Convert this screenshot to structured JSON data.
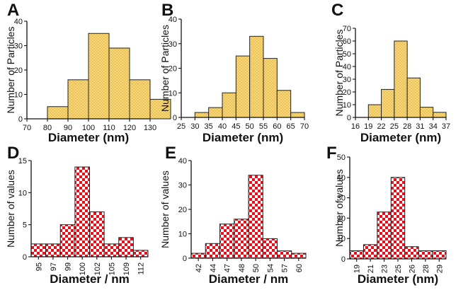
{
  "colors": {
    "yellow_fill": "#f5d77a",
    "yellow_dot": "#e2a82e",
    "red_fill": "#e8101a",
    "check_white": "#ffffff"
  },
  "chart_data": [
    {
      "panel_label": "A",
      "type": "bar",
      "style": "yellow-dotted",
      "ylabel": "Number of Particles",
      "xlabel": "Diameter (nm)",
      "ylim": [
        0,
        40
      ],
      "yticks": [
        0,
        10,
        20,
        30,
        40
      ],
      "x_tick_labels": [
        "70",
        "80",
        "90",
        "100",
        "110",
        "120",
        "130"
      ],
      "tick_mode": "edges",
      "bins": [
        {
          "from": 80,
          "to": 90,
          "value": 5
        },
        {
          "from": 90,
          "to": 100,
          "value": 16
        },
        {
          "from": 100,
          "to": 110,
          "value": 35
        },
        {
          "from": 110,
          "to": 120,
          "value": 29
        },
        {
          "from": 120,
          "to": 130,
          "value": 16
        },
        {
          "from": 130,
          "to": 140,
          "value": 8
        }
      ]
    },
    {
      "panel_label": "B",
      "type": "bar",
      "style": "yellow-dotted",
      "ylabel": "Number of Particles",
      "xlabel": "Diameter (nm)",
      "ylim": [
        0,
        40
      ],
      "yticks": [
        0,
        10,
        20,
        30,
        40
      ],
      "x_tick_labels": [
        "25",
        "30",
        "35",
        "40",
        "45",
        "50",
        "55",
        "60",
        "65",
        "70"
      ],
      "tick_mode": "edges",
      "bins": [
        {
          "from": 30,
          "to": 35,
          "value": 2
        },
        {
          "from": 35,
          "to": 40,
          "value": 4
        },
        {
          "from": 40,
          "to": 45,
          "value": 10
        },
        {
          "from": 45,
          "to": 50,
          "value": 25
        },
        {
          "from": 50,
          "to": 55,
          "value": 33
        },
        {
          "from": 55,
          "to": 60,
          "value": 24
        },
        {
          "from": 60,
          "to": 65,
          "value": 11
        },
        {
          "from": 65,
          "to": 70,
          "value": 2
        }
      ]
    },
    {
      "panel_label": "C",
      "type": "bar",
      "style": "yellow-dotted",
      "ylabel": "Number of Particles",
      "xlabel": "Diameter (nm)",
      "ylim": [
        0,
        70
      ],
      "yticks": [
        0,
        10,
        20,
        30,
        40,
        50,
        60,
        70
      ],
      "x_tick_labels": [
        "16",
        "19",
        "22",
        "25",
        "28",
        "31",
        "34",
        "37"
      ],
      "tick_mode": "edges",
      "bins": [
        {
          "from": 19,
          "to": 22,
          "value": 10
        },
        {
          "from": 22,
          "to": 25,
          "value": 22
        },
        {
          "from": 25,
          "to": 28,
          "value": 60
        },
        {
          "from": 28,
          "to": 31,
          "value": 31
        },
        {
          "from": 31,
          "to": 34,
          "value": 8
        },
        {
          "from": 34,
          "to": 37,
          "value": 4
        }
      ]
    },
    {
      "panel_label": "D",
      "type": "bar",
      "style": "red-checker",
      "ylabel": "Number of values",
      "xlabel": "Diameter / nm",
      "ylim": [
        0,
        15
      ],
      "yticks": [
        0,
        5,
        10,
        15
      ],
      "tick_mode": "centers",
      "categories": [
        "95",
        "97",
        "99",
        "100",
        "102",
        "105",
        "109",
        "112"
      ],
      "values": [
        2,
        2,
        5,
        14,
        7,
        2,
        3,
        1
      ]
    },
    {
      "panel_label": "E",
      "type": "bar",
      "style": "red-checker",
      "ylabel": "Number of values",
      "xlabel": "Diameter / nm",
      "ylim": [
        0,
        40
      ],
      "yticks": [
        0,
        10,
        20,
        30,
        40
      ],
      "tick_mode": "centers",
      "categories": [
        "42",
        "44",
        "47",
        "48",
        "50",
        "54",
        "57",
        "60"
      ],
      "values": [
        2,
        6,
        14,
        16,
        34,
        8,
        3,
        2
      ]
    },
    {
      "panel_label": "F",
      "type": "bar",
      "style": "red-checker",
      "ylabel": "Number of values",
      "xlabel": "Diameter (nm)",
      "ylim": [
        0,
        50
      ],
      "yticks": [
        0,
        10,
        20,
        30,
        40,
        50
      ],
      "tick_mode": "centers",
      "categories": [
        "19",
        "21",
        "23",
        "25",
        "26",
        "28",
        "29"
      ],
      "values": [
        4,
        7,
        23,
        40,
        6,
        4,
        4
      ]
    }
  ]
}
